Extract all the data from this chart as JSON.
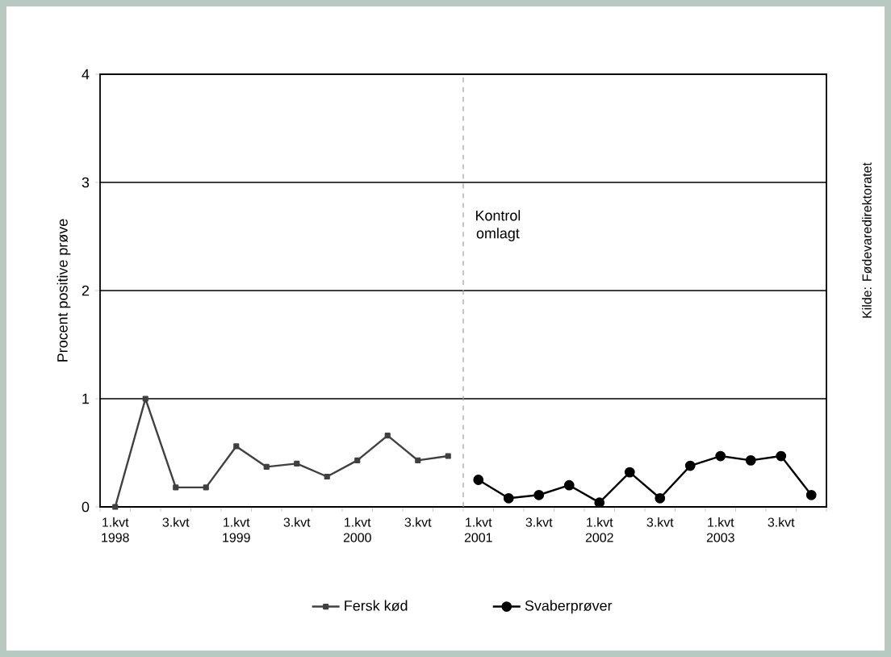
{
  "chart_data": {
    "type": "line",
    "ylabel": "Procent positive prøve",
    "categories": [
      "1.kvt 1998",
      null,
      "3.kvt",
      null,
      "1.kvt 1999",
      null,
      "3.kvt",
      null,
      "1.kvt 2000",
      null,
      "3.kvt",
      null,
      "1.kvt 2001",
      null,
      "3.kvt",
      null,
      "1.kvt 2002",
      null,
      "3.kvt",
      null,
      "1.kvt 2003",
      null,
      "3.kvt",
      null
    ],
    "series": [
      {
        "name": "Fersk kød",
        "color": "#404040",
        "marker": "square",
        "values": [
          0,
          1.0,
          0.18,
          0.18,
          0.56,
          0.37,
          0.4,
          0.28,
          0.43,
          0.66,
          0.43,
          0.47,
          null,
          null,
          null,
          null,
          null,
          null,
          null,
          null,
          null,
          null,
          null,
          null
        ]
      },
      {
        "name": "Svaberprøver",
        "color": "#000000",
        "marker": "circle",
        "values": [
          null,
          null,
          null,
          null,
          null,
          null,
          null,
          null,
          null,
          null,
          null,
          null,
          0.25,
          0.08,
          0.11,
          0.2,
          0.04,
          0.32,
          0.08,
          0.38,
          0.47,
          0.43,
          0.47,
          0.11
        ]
      }
    ],
    "ylim": [
      0,
      4
    ],
    "yticks": [
      0,
      1,
      2,
      3,
      4
    ],
    "grid": "y",
    "legend": "bottom",
    "line_style": "solid",
    "annotations": [
      "Kontrol omlagt",
      "Kilde: Fødevaredirektoratet"
    ]
  }
}
